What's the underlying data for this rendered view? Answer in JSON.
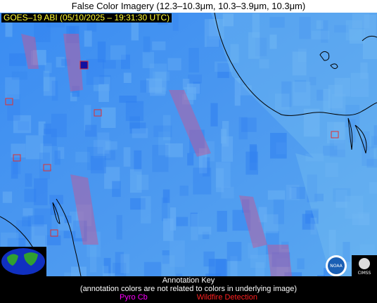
{
  "header": {
    "title": "False Color Imagery (12.3–10.3μm, 10.3–3.9μm, 10.3μm)"
  },
  "image": {
    "stamp": "GOES–19 ABI (05/10/2025 – 19:31:30 UTC)"
  },
  "annotation_key": {
    "title": "Annotation Key",
    "note": "(annotation colors are not related to colors in underlying image)",
    "items": [
      "Pyro Cb",
      "Wildfire Detection"
    ]
  },
  "logos": {
    "noaa": "NOAA",
    "cimss": "CIMSS"
  }
}
